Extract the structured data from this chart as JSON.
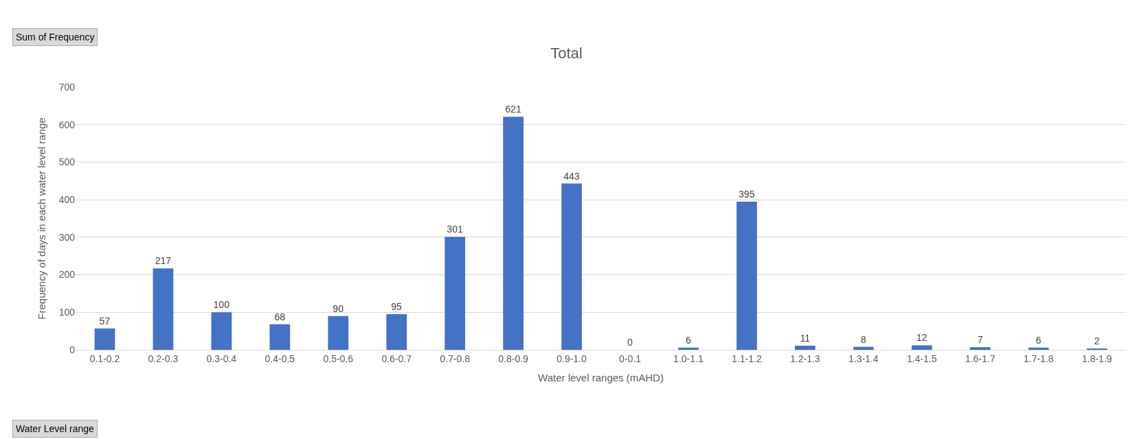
{
  "chart_data": {
    "type": "bar",
    "title": "Total",
    "xlabel": "Water level ranges (mAHD)",
    "ylabel": "Frequency of days in each water level range",
    "categories": [
      "0.1-0.2",
      "0.2-0.3",
      "0.3-0.4",
      "0.4-0.5",
      "0.5-0.6",
      "0.6-0.7",
      "0.7-0.8",
      "0.8-0.9",
      "0.9-1.0",
      "0-0.1",
      "1.0-1.1",
      "1.1-1.2",
      "1.2-1.3",
      "1.3-1.4",
      "1.4-1.5",
      "1.6-1.7",
      "1.7-1.8",
      "1.8-1.9"
    ],
    "values": [
      57,
      217,
      100,
      68,
      90,
      95,
      301,
      621,
      443,
      0,
      6,
      395,
      11,
      8,
      12,
      7,
      6,
      2
    ],
    "color": "#4472c4",
    "ylim": [
      0,
      700
    ],
    "yticks": [
      0,
      100,
      200,
      300,
      400,
      500,
      600,
      700
    ],
    "grid": "y",
    "data_labels": true,
    "legend": false,
    "annotations": [
      "Sum of Frequency",
      "Water Level range"
    ]
  }
}
